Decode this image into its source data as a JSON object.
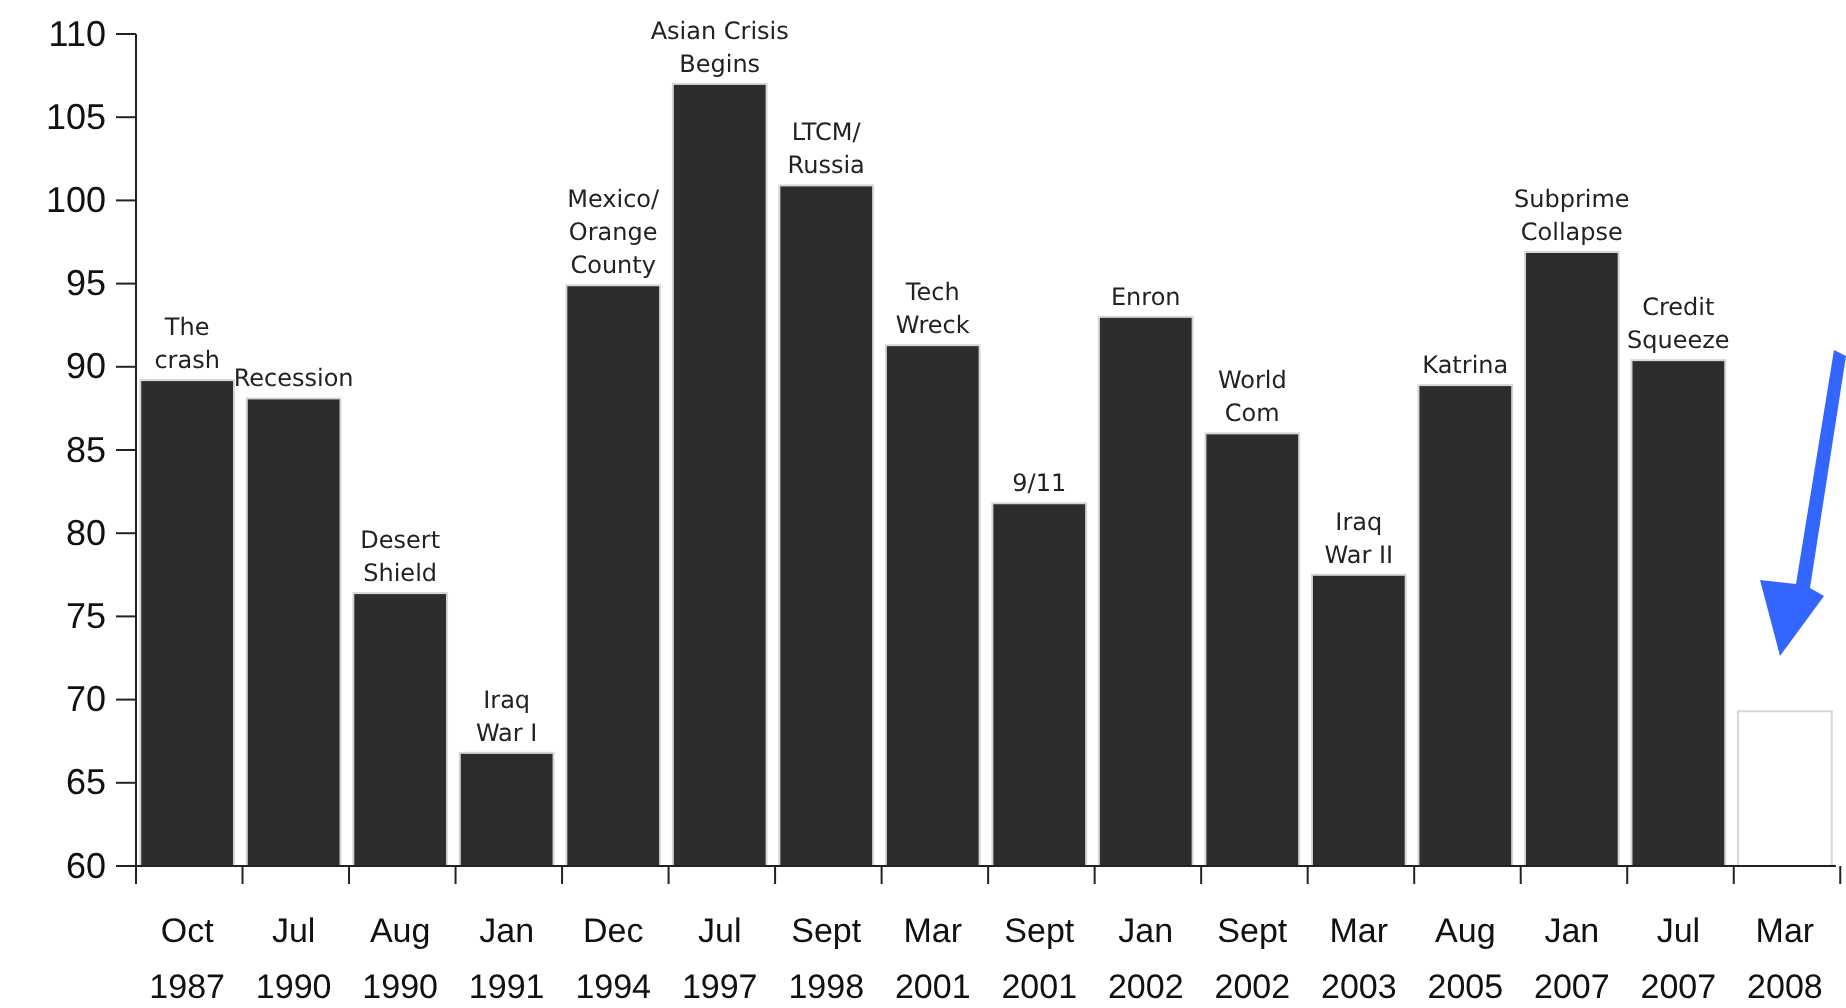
{
  "chart_data": {
    "type": "bar",
    "categories": [
      "Oct 1987",
      "Jul 1990",
      "Aug 1990",
      "Jan 1991",
      "Dec 1994",
      "Jul 1997",
      "Sept 1998",
      "Mar 2001",
      "Sept 2001",
      "Jan 2002",
      "Sept 2002",
      "Mar 2003",
      "Aug 2005",
      "Jan 2007",
      "Jul 2007",
      "Mar 2008"
    ],
    "values": [
      89.2,
      88.1,
      76.4,
      66.8,
      94.9,
      107.0,
      100.9,
      91.3,
      81.8,
      93.0,
      86.0,
      77.5,
      88.9,
      96.9,
      90.4,
      69.3
    ],
    "colors": [
      "#2d2d2d",
      "#2d2d2d",
      "#2d2d2d",
      "#2d2d2d",
      "#2d2d2d",
      "#2d2d2d",
      "#2d2d2d",
      "#2d2d2d",
      "#2d2d2d",
      "#2d2d2d",
      "#2d2d2d",
      "#2d2d2d",
      "#2d2d2d",
      "#2d2d2d",
      "#2d2d2d",
      "#ffffff"
    ],
    "ylim": [
      60,
      110
    ],
    "yticks": [
      60,
      65,
      70,
      75,
      80,
      85,
      90,
      95,
      100,
      105,
      110
    ],
    "grid": false,
    "annotations": [
      {
        "text": "The\ncrash",
        "x": "Oct 1987",
        "y": 89.2
      },
      {
        "text": "Recession",
        "x": "Jul 1990",
        "y": 88.1
      },
      {
        "text": "Desert\nShield",
        "x": "Aug 1990",
        "y": 76.4
      },
      {
        "text": "Iraq\nWar I",
        "x": "Jan 1991",
        "y": 66.8
      },
      {
        "text": "Mexico/\nOrange\nCounty",
        "x": "Dec 1994",
        "y": 94.9
      },
      {
        "text": "Asian Crisis\nBegins",
        "x": "Jul 1997",
        "y": 107.0
      },
      {
        "text": "LTCM/\nRussia",
        "x": "Sept 1998",
        "y": 100.9
      },
      {
        "text": "Tech\nWreck",
        "x": "Mar 2001",
        "y": 91.3
      },
      {
        "text": "9/11",
        "x": "Sept 2001",
        "y": 81.8
      },
      {
        "text": "Enron",
        "x": "Jan 2002",
        "y": 93.0
      },
      {
        "text": "World\nCom",
        "x": "Sept 2002",
        "y": 86.0
      },
      {
        "text": "Iraq\nWar II",
        "x": "Mar 2003",
        "y": 77.5
      },
      {
        "text": "Katrina",
        "x": "Aug 2005",
        "y": 88.9
      },
      {
        "text": "Subprime\nCollapse",
        "x": "Jan 2007",
        "y": 96.9
      },
      {
        "text": "Credit\nSqueeze",
        "x": "Jul 2007",
        "y": 90.4
      }
    ]
  }
}
